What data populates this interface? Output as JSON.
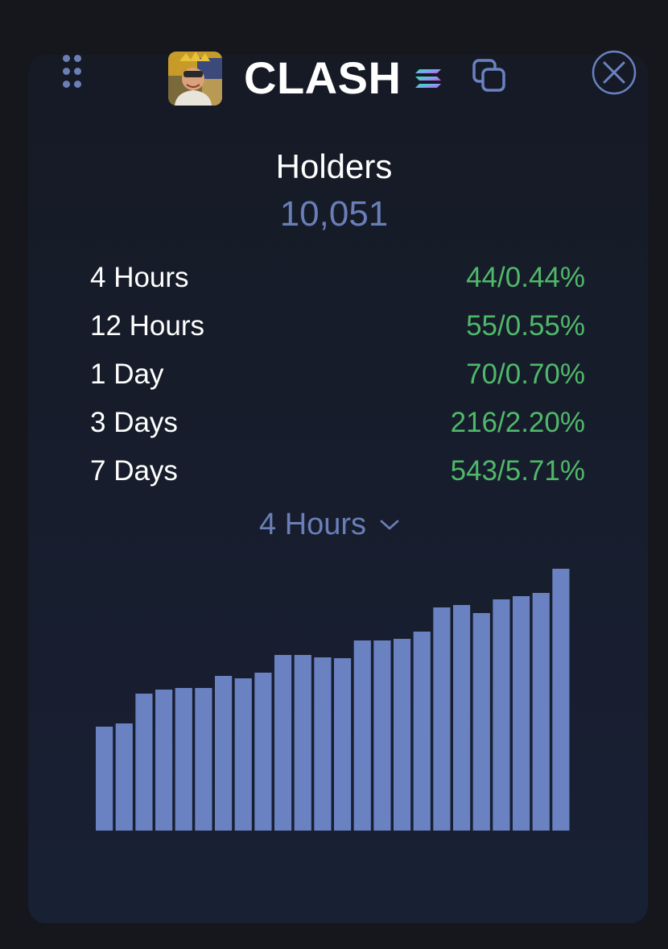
{
  "header": {
    "ticker": "CLASH",
    "drag_icon": "drag-dots-icon",
    "avatar_icon": "token-avatar",
    "chain_icon": "solana-icon",
    "copy_icon": "copy-icon",
    "close_icon": "close-icon"
  },
  "holders": {
    "title": "Holders",
    "count": "10,051"
  },
  "stats": [
    {
      "label": "4 Hours",
      "value": "44/0.44%"
    },
    {
      "label": "12 Hours",
      "value": "55/0.55%"
    },
    {
      "label": "1 Day",
      "value": "70/0.70%"
    },
    {
      "label": "3 Days",
      "value": "216/2.20%"
    },
    {
      "label": "7 Days",
      "value": "543/5.71%"
    }
  ],
  "period_select": {
    "selected": "4 Hours",
    "icon": "chevron-down-icon"
  },
  "colors": {
    "accent": "#6a7fb8",
    "positive": "#4fb96a",
    "bar": "#6a82c2"
  },
  "chart_data": {
    "type": "bar",
    "values": [
      129,
      133,
      170,
      175,
      177,
      177,
      192,
      189,
      196,
      218,
      218,
      215,
      214,
      236,
      236,
      238,
      247,
      277,
      280,
      270,
      287,
      291,
      295,
      325
    ],
    "ylim": [
      0,
      330
    ]
  }
}
